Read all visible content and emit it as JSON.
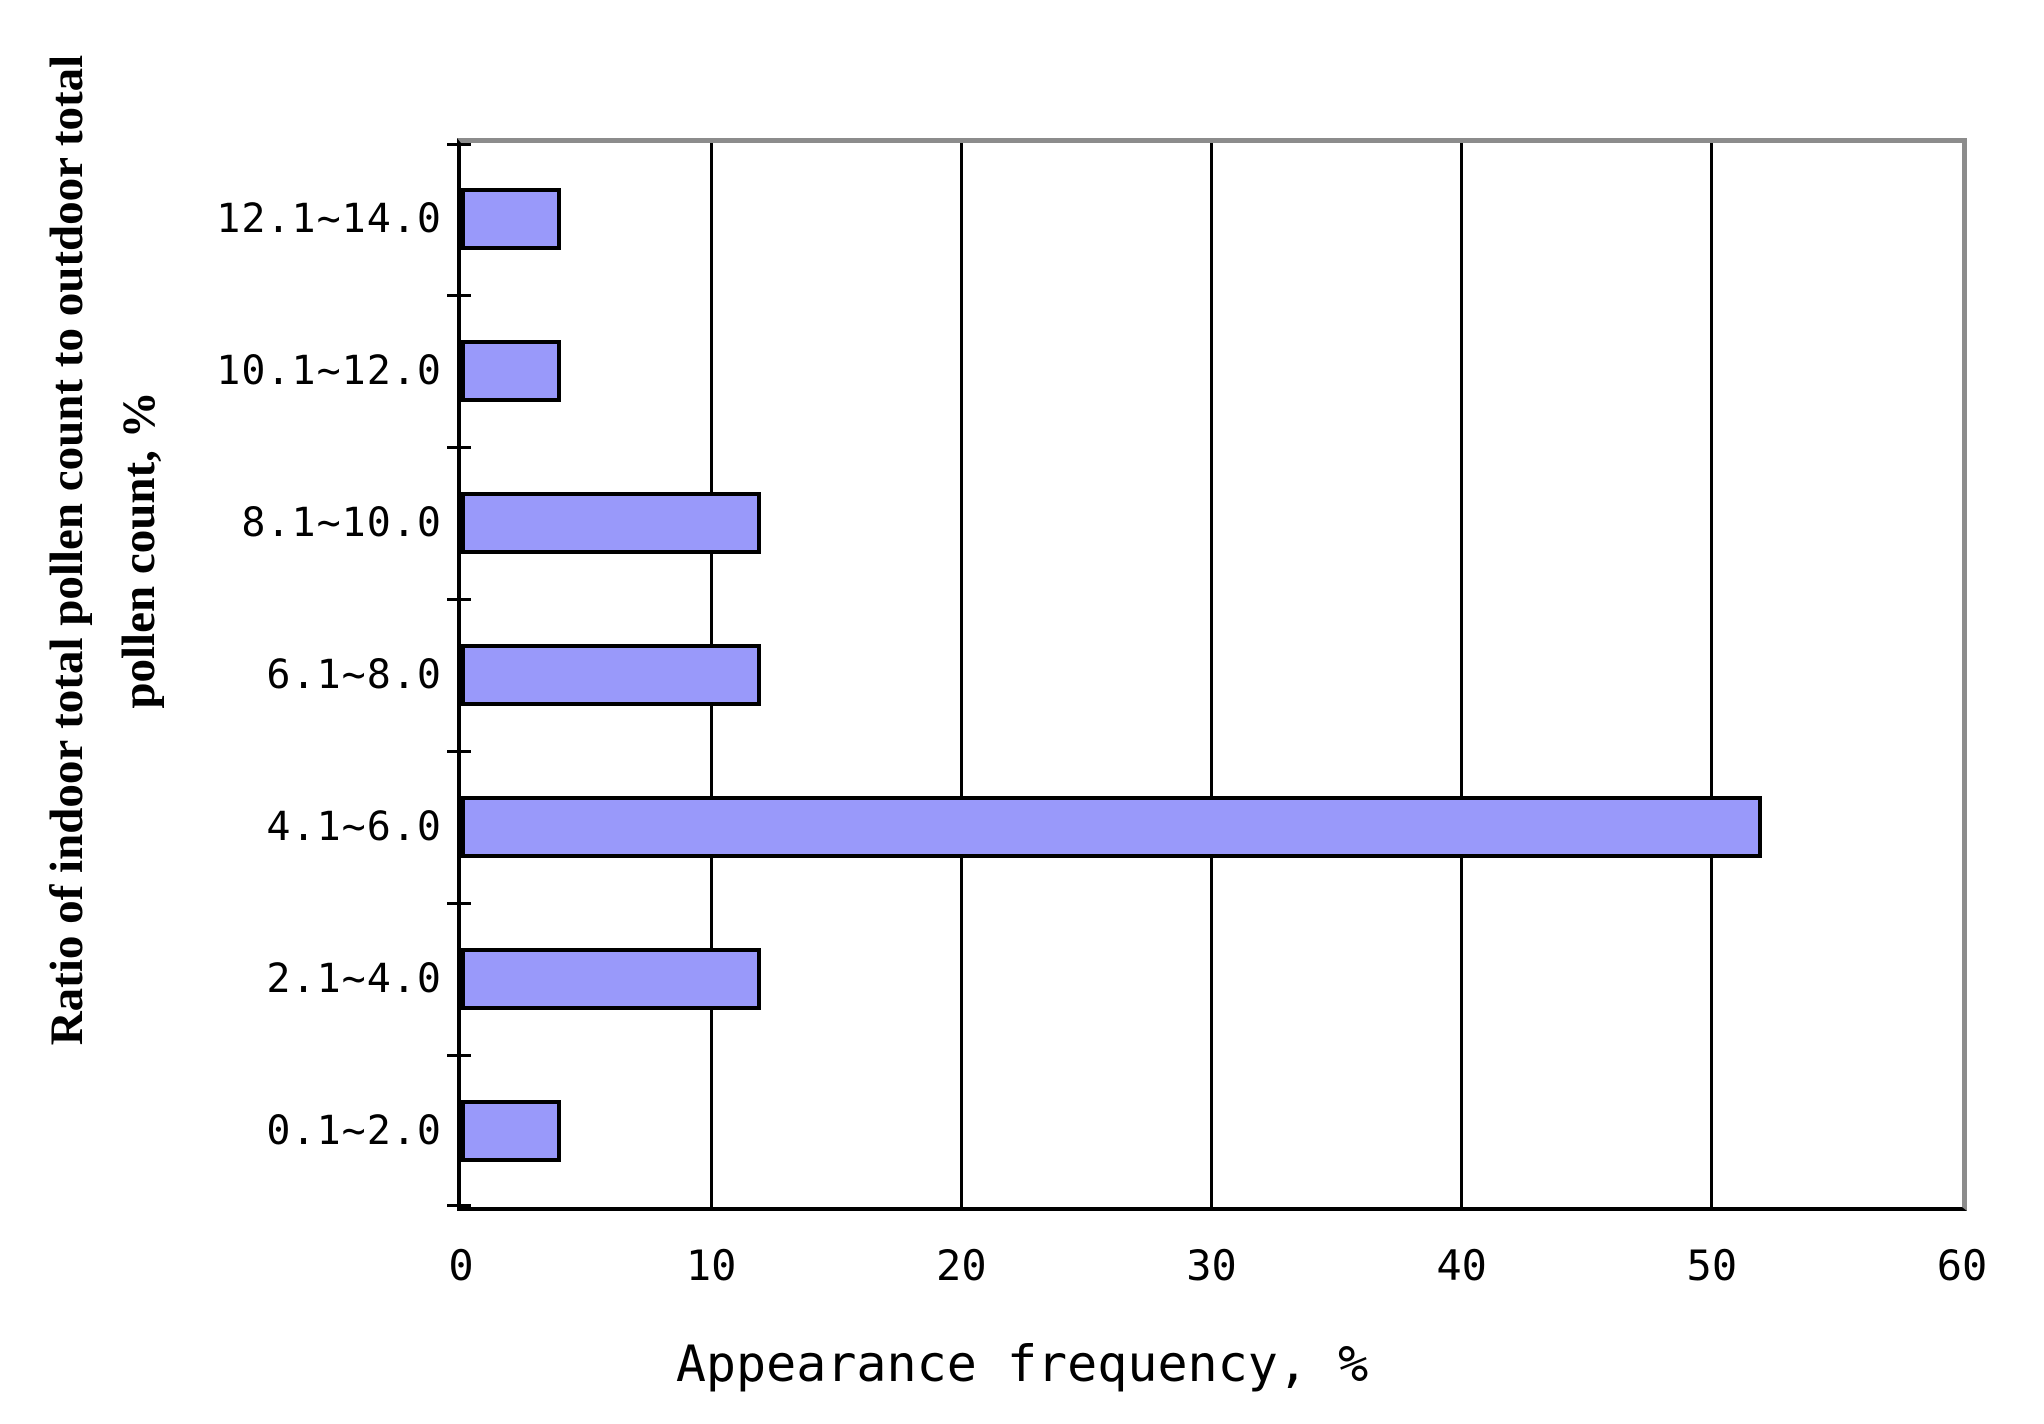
{
  "chart_data": {
    "type": "bar",
    "orientation": "horizontal",
    "title": "",
    "xlabel": "Appearance frequency, %",
    "ylabel_line1": "Ratio of indoor total pollen count to outdoor total",
    "ylabel_line2": "pollen count, %",
    "categories": [
      "12.1~14.0",
      "10.1~12.0",
      "8.1~10.0",
      "6.1~8.0",
      "4.1~6.0",
      "2.1~4.0",
      "0.1~2.0"
    ],
    "values": [
      4,
      4,
      12,
      12,
      52,
      12,
      4
    ],
    "xlim": [
      0,
      60
    ],
    "xticks": [
      0,
      10,
      20,
      30,
      40,
      50,
      60
    ],
    "grid": "vertical gridlines at each x tick, black",
    "legend_position": "none",
    "colors": {
      "bar_fill": "#9999FA",
      "bar_border": "#000000",
      "gridline": "#000000",
      "axis": "#000000",
      "plot_border_gray": "#8C8C8C",
      "text": "#000000",
      "background": "#FFFFFF"
    }
  }
}
